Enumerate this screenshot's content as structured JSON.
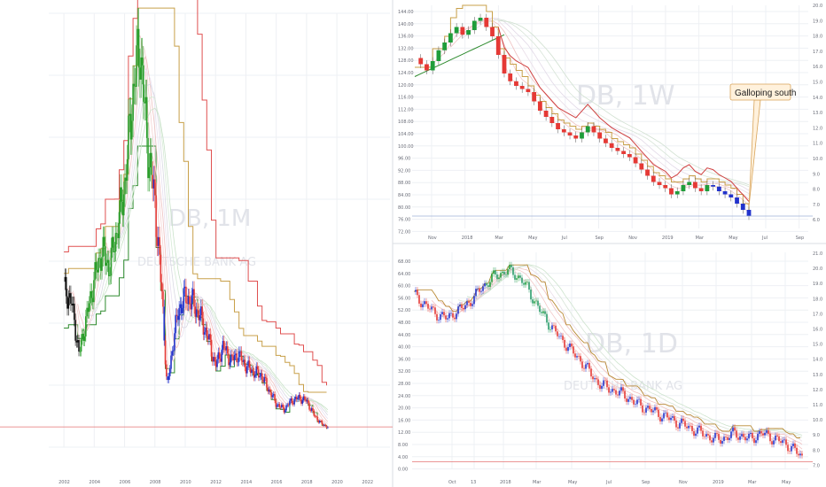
{
  "layout_name": "three-panel chart screenshot",
  "chart_data": [
    {
      "id": "monthly",
      "type": "candlestick",
      "watermark": [
        "DB, 1M",
        "DEUTSCHE BANK AG"
      ],
      "x_ticks": [
        "2002",
        "2004",
        "2006",
        "2008",
        "2010",
        "2012",
        "2014",
        "2016",
        "2018",
        "2020",
        "2022"
      ],
      "x_range": [
        2001.0,
        2023.5
      ],
      "y_range": [
        0,
        150
      ],
      "series": [
        {
          "name": "close",
          "x": [
            2002.0,
            2002.5,
            2003.0,
            2003.5,
            2004.0,
            2004.5,
            2005.0,
            2005.5,
            2006.0,
            2006.5,
            2007.0,
            2007.3,
            2007.6,
            2008.0,
            2008.5,
            2008.8,
            2009.0,
            2009.3,
            2009.6,
            2010.0,
            2010.5,
            2011.0,
            2011.5,
            2012.0,
            2012.5,
            2013.0,
            2013.5,
            2014.0,
            2014.5,
            2015.0,
            2015.5,
            2016.0,
            2016.5,
            2017.0,
            2017.5,
            2018.0,
            2018.5,
            2019.0,
            2019.4
          ],
          "y": [
            55,
            50,
            32,
            45,
            58,
            68,
            62,
            75,
            90,
            120,
            140,
            118,
            100,
            85,
            50,
            20,
            28,
            40,
            48,
            52,
            50,
            45,
            38,
            28,
            35,
            30,
            32,
            28,
            26,
            25,
            20,
            15,
            13,
            16,
            17,
            16,
            11,
            8,
            7
          ]
        }
      ],
      "overlays": [
        {
          "name": "trailing-stop-green",
          "color": "#2e8b2e"
        },
        {
          "name": "trailing-stop-orange",
          "color": "#c8a04a"
        },
        {
          "name": "trailing-stop-red",
          "color": "#e05050"
        }
      ],
      "support_line": 7.0,
      "colors": {
        "up": "#2a9d2a",
        "down": "#e53935",
        "neutral": "#2233cc",
        "early": "#111111"
      }
    },
    {
      "id": "weekly",
      "type": "candlestick",
      "watermark": [
        "DB, 1W"
      ],
      "x_ticks": [
        "Nov",
        "2018",
        "Mar",
        "May",
        "Jul",
        "Sep",
        "Nov",
        "2019",
        "Mar",
        "May",
        "Jul",
        "Sep"
      ],
      "y_ticks": [
        "144.00",
        "140.00",
        "136.00",
        "132.00",
        "128.00",
        "124.00",
        "120.00",
        "116.00",
        "112.00",
        "108.00",
        "104.00",
        "100.00",
        "96.00",
        "92.00",
        "88.00",
        "84.00",
        "80.00",
        "76.00",
        "72.00"
      ],
      "y_ticks_right": [
        "20.0",
        "19.0",
        "18.0",
        "17.0",
        "16.0",
        "15.0",
        "14.0",
        "13.0",
        "12.0",
        "11.0",
        "10.0",
        "9.0",
        "8.0",
        "7.0",
        "6.0"
      ],
      "annotation": {
        "text": "Galloping south"
      },
      "series": [
        {
          "name": "close",
          "y": [
            17,
            16.6,
            16.2,
            16.8,
            17.5,
            18,
            18.6,
            19,
            18.5,
            18.8,
            19.4,
            19.6,
            19,
            18.4,
            17.2,
            16,
            15.5,
            15.2,
            15,
            14.8,
            14.2,
            13.6,
            13.2,
            12.8,
            12.4,
            12.2,
            12,
            11.8,
            12.2,
            12.6,
            12.2,
            11.8,
            11.5,
            11.2,
            11,
            10.8,
            10.6,
            10.2,
            9.8,
            9.4,
            9.0,
            8.8,
            8.6,
            8.2,
            8.4,
            8.8,
            9.0,
            8.6,
            8.4,
            8.8,
            8.7,
            8.4,
            8.2,
            8.0,
            7.6,
            7.2,
            6.8
          ]
        }
      ],
      "support_line": 6.8
    },
    {
      "id": "daily",
      "type": "candlestick",
      "watermark": [
        "DB, 1D",
        "DEUTSCHE BANK AG"
      ],
      "x_ticks": [
        "Oct",
        "13",
        "2018",
        "Mar",
        "May",
        "Jul",
        "Sep",
        "Nov",
        "2019",
        "Mar",
        "May"
      ],
      "y_ticks": [
        "68.00",
        "64.00",
        "60.00",
        "56.00",
        "52.00",
        "48.00",
        "44.00",
        "40.00",
        "36.00",
        "32.00",
        "28.00",
        "24.00",
        "20.00",
        "16.00",
        "12.00",
        "8.00",
        "4.00",
        "0.00"
      ],
      "y_ticks_right": [
        "21.0",
        "20.0",
        "19.0",
        "18.0",
        "17.0",
        "16.0",
        "15.0",
        "14.0",
        "13.0",
        "12.0",
        "11.0",
        "10.0",
        "9.0",
        "8.0",
        "7.0"
      ],
      "series": [
        {
          "name": "close",
          "y": [
            18.2,
            17.8,
            17.4,
            17.0,
            16.8,
            16.6,
            17.0,
            17.2,
            17.6,
            18.0,
            18.6,
            19.0,
            19.4,
            19.6,
            19.8,
            19.6,
            19.2,
            18.6,
            17.8,
            17.0,
            16.4,
            15.8,
            15.2,
            14.8,
            14.2,
            13.8,
            13.2,
            12.6,
            12.2,
            12.0,
            11.8,
            11.6,
            11.4,
            11.0,
            10.8,
            10.6,
            10.4,
            10.2,
            10.0,
            9.8,
            9.6,
            9.4,
            9.2,
            9.0,
            8.8,
            8.6,
            8.6,
            8.8,
            9.0,
            8.8,
            8.6,
            8.8,
            9.0,
            8.8,
            8.6,
            8.4,
            8.2,
            7.8,
            7.4
          ]
        }
      ],
      "support_line": 7.1
    }
  ]
}
